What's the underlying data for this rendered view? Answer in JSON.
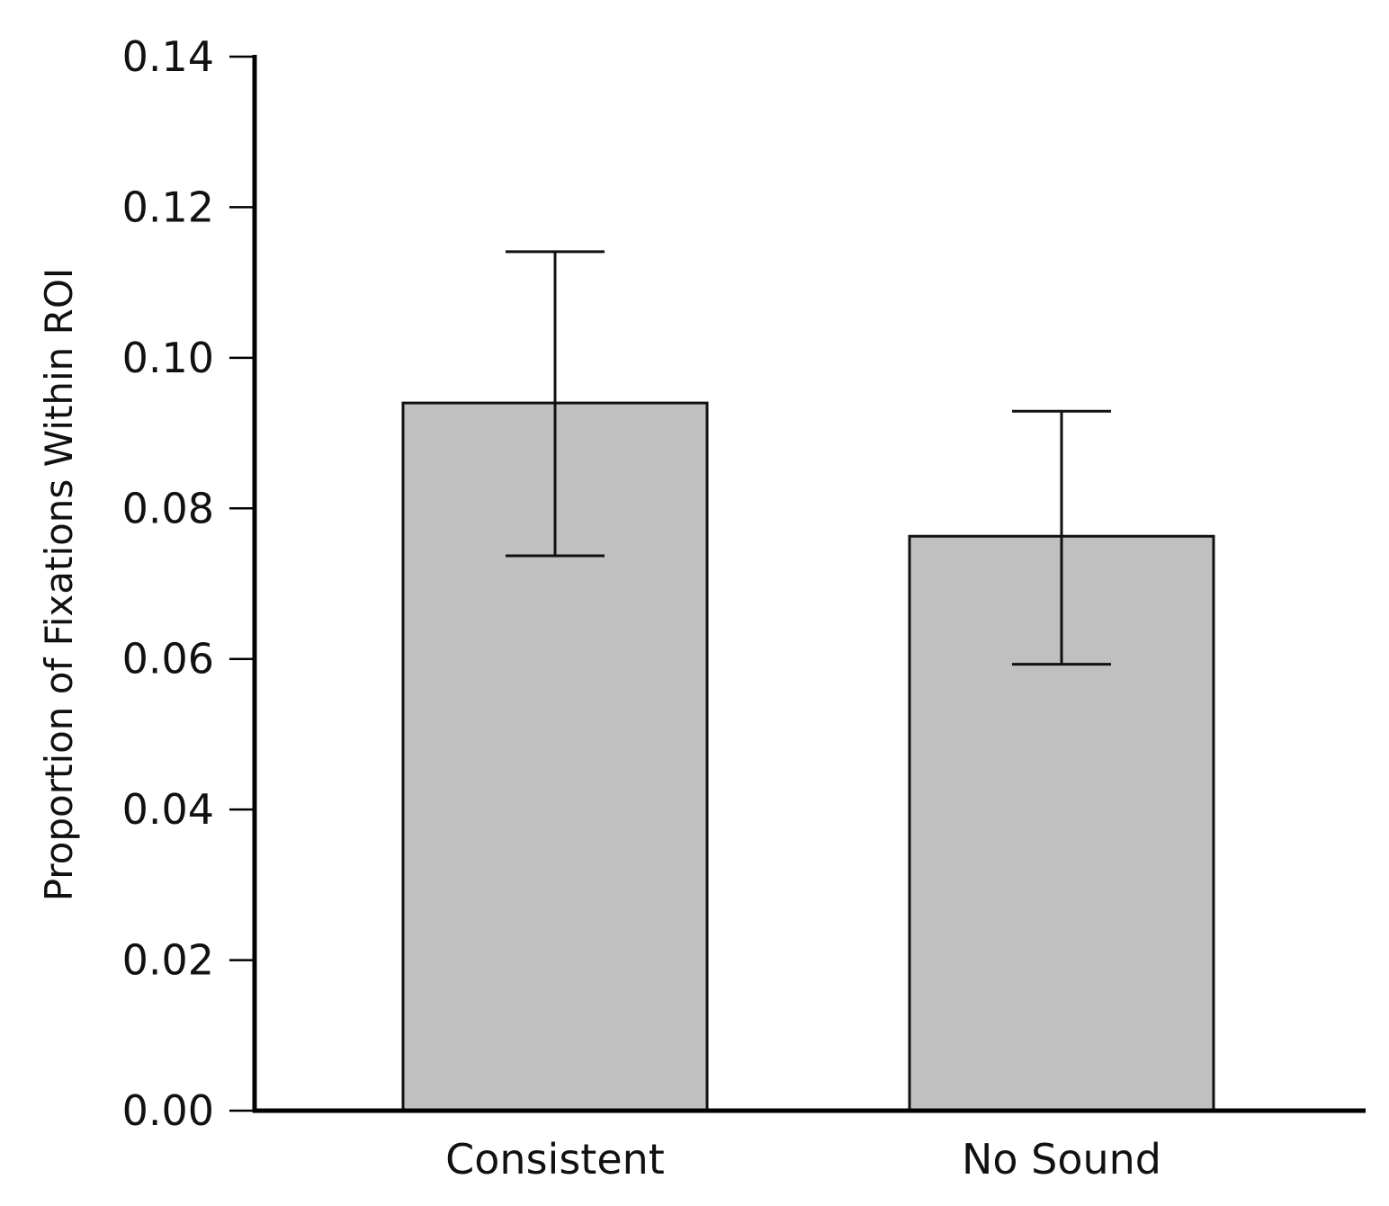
{
  "chart_data": {
    "type": "bar",
    "title": "",
    "xlabel": "",
    "ylabel": "Proportion of Fixations Within ROI",
    "categories": [
      "Consistent",
      "No Sound"
    ],
    "values": [
      0.094,
      0.0763
    ],
    "error_bars": [
      {
        "low": 0.0737,
        "high": 0.1141
      },
      {
        "low": 0.0593,
        "high": 0.0929
      }
    ],
    "ylim": [
      0,
      0.14
    ],
    "yticks": [
      0.0,
      0.02,
      0.04,
      0.06,
      0.08,
      0.1,
      0.12,
      0.14
    ],
    "ytick_labels": [
      "0.00",
      "0.02",
      "0.04",
      "0.06",
      "0.08",
      "0.10",
      "0.12",
      "0.14"
    ],
    "grid": false,
    "legend": "none",
    "bar_color": "#c0c0c0",
    "edge_color": "#111111"
  }
}
